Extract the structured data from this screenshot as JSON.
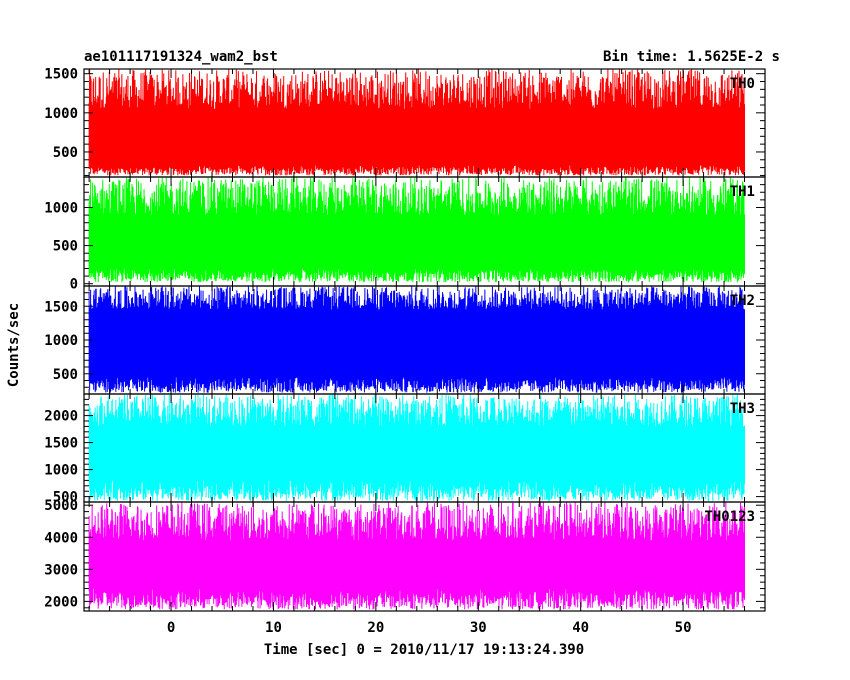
{
  "header": {
    "title": "ae101117191324_wam2_bst",
    "bin_time": "Bin time: 1.5625E-2 s"
  },
  "axes": {
    "ylabel": "Counts/sec",
    "xlabel": "Time [sec] 0 = 2010/11/17 19:13:24.390"
  },
  "chart_data": {
    "type": "line",
    "x_range": [
      -8.5,
      58
    ],
    "x_ticks": [
      0,
      10,
      20,
      30,
      40,
      50
    ],
    "x_data_range": [
      -8,
      56
    ],
    "grid": false,
    "series": [
      {
        "name": "TH0",
        "color": "#ff0000",
        "ylim": [
          180,
          1560
        ],
        "y_ticks": [
          500,
          1000,
          1500
        ],
        "band_low": [
          200,
          330
        ],
        "band_high": [
          1050,
          1560
        ],
        "mean": 700
      },
      {
        "name": "TH1",
        "color": "#00ff00",
        "ylim": [
          -30,
          1400
        ],
        "y_ticks": [
          0,
          500,
          1000
        ],
        "band_low": [
          20,
          200
        ],
        "band_high": [
          900,
          1400
        ],
        "mean": 680
      },
      {
        "name": "TH2",
        "color": "#0000ff",
        "ylim": [
          200,
          1800
        ],
        "y_ticks": [
          500,
          1000,
          1500
        ],
        "band_low": [
          220,
          450
        ],
        "band_high": [
          1450,
          1800
        ],
        "mean": 930
      },
      {
        "name": "TH3",
        "color": "#00ffff",
        "ylim": [
          400,
          2400
        ],
        "y_ticks": [
          500,
          1000,
          1500,
          2000
        ],
        "band_low": [
          420,
          800
        ],
        "band_high": [
          1800,
          2400
        ],
        "mean": 1300
      },
      {
        "name": "TH0123",
        "color": "#ff00ff",
        "ylim": [
          1700,
          5100
        ],
        "y_ticks": [
          2000,
          3000,
          4000,
          5000
        ],
        "band_low": [
          1750,
          2400
        ],
        "band_high": [
          3900,
          5100
        ],
        "mean": 3100
      }
    ]
  }
}
